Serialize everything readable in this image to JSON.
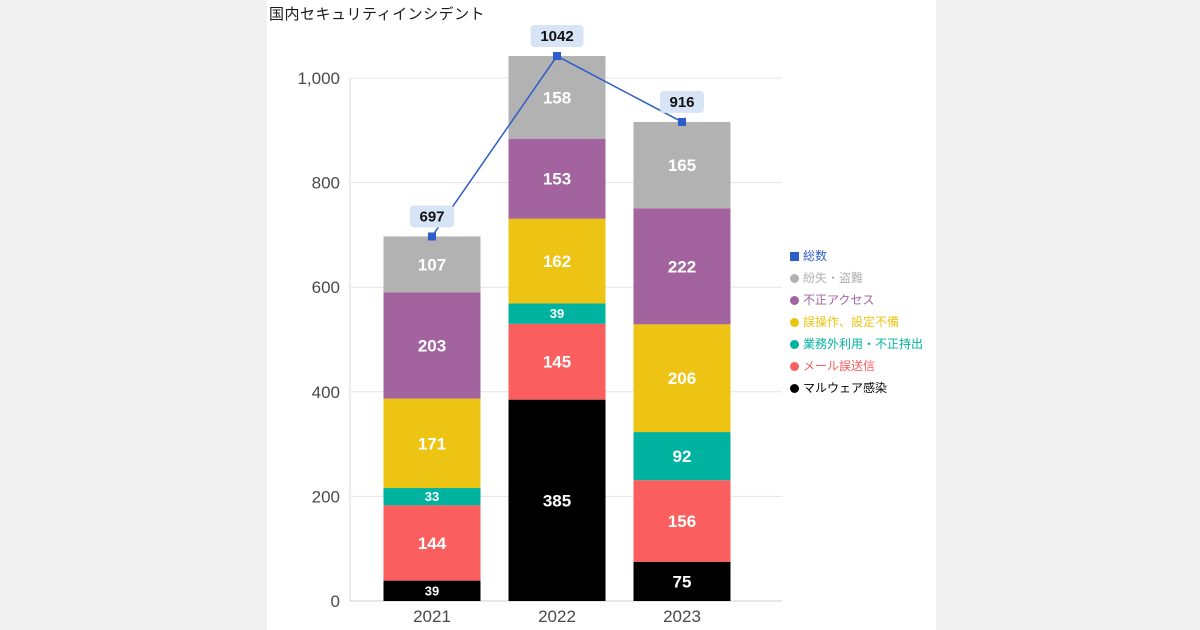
{
  "page": {
    "background": "#f1f1f2",
    "card_background": "#ffffff"
  },
  "chart_data": {
    "type": "bar",
    "stacked": true,
    "title": "国内セキュリティインシデント",
    "categories": [
      "2021",
      "2022",
      "2023"
    ],
    "series": [
      {
        "name": "マルウェア感染",
        "color": "#000000",
        "values": [
          39,
          385,
          75
        ]
      },
      {
        "name": "メール誤送信",
        "color": "#fa5e5e",
        "values": [
          144,
          145,
          156
        ]
      },
      {
        "name": "業務外利用・不正持出",
        "color": "#00b3a0",
        "values": [
          33,
          39,
          92
        ]
      },
      {
        "name": "誤操作、設定不備",
        "color": "#edc413",
        "values": [
          171,
          162,
          206
        ]
      },
      {
        "name": "不正アクセス",
        "color": "#a2639e",
        "values": [
          203,
          153,
          222
        ]
      },
      {
        "name": "紛失・盗難",
        "color": "#b2b2b2",
        "values": [
          107,
          158,
          165
        ]
      }
    ],
    "line": {
      "name": "総数",
      "color": "#2d5dc8",
      "values": [
        697,
        1042,
        916
      ],
      "label_bg": "#d6e4f6",
      "label_color": "#111111"
    },
    "ylim": [
      0,
      1000
    ],
    "yticks": [
      0,
      200,
      400,
      600,
      800,
      1000
    ],
    "ytick_labels": [
      "0",
      "200",
      "400",
      "600",
      "800",
      "1,000"
    ],
    "grid": true,
    "legend_position": "right",
    "legend": [
      {
        "label": "総数",
        "color": "#2d5dc8",
        "marker": "square"
      },
      {
        "label": "紛失・盗難",
        "color": "#b2b2b2",
        "marker": "circle"
      },
      {
        "label": "不正アクセス",
        "color": "#a2639e",
        "marker": "circle"
      },
      {
        "label": "誤操作、設定不備",
        "color": "#edc413",
        "marker": "circle"
      },
      {
        "label": "業務外利用・不正持出",
        "color": "#00b3a0",
        "marker": "circle"
      },
      {
        "label": "メール誤送信",
        "color": "#fa5e5e",
        "marker": "circle"
      },
      {
        "label": "マルウェア感染",
        "color": "#000000",
        "marker": "circle"
      }
    ]
  }
}
